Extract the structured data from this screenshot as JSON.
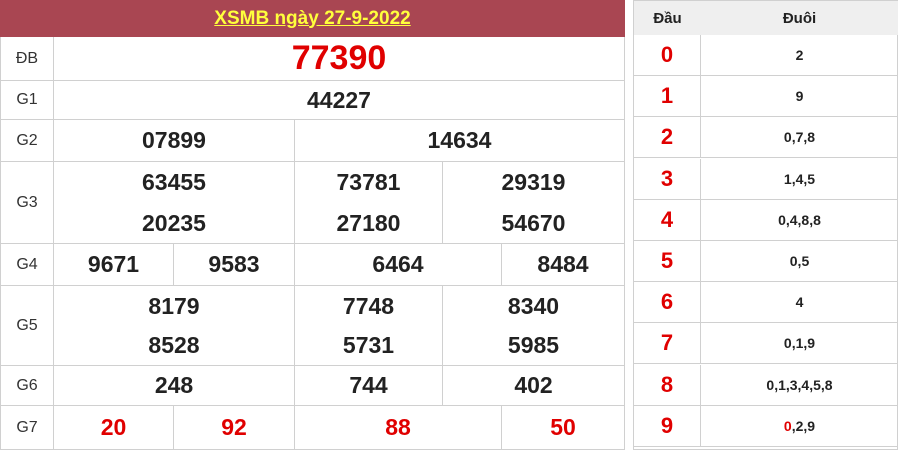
{
  "title": "XSMB ngày 27-9-2022",
  "prizes": {
    "db": {
      "label": "ĐB",
      "numbers": [
        "77390"
      ]
    },
    "g1": {
      "label": "G1",
      "numbers": [
        "44227"
      ]
    },
    "g2": {
      "label": "G2",
      "numbers": [
        "07899",
        "14634"
      ]
    },
    "g3": {
      "label": "G3",
      "numbers": [
        "63455",
        "73781",
        "29319",
        "20235",
        "27180",
        "54670"
      ]
    },
    "g4": {
      "label": "G4",
      "numbers": [
        "9671",
        "9583",
        "6464",
        "8484"
      ]
    },
    "g5": {
      "label": "G5",
      "numbers": [
        "8179",
        "7748",
        "8340",
        "8528",
        "5731",
        "5985"
      ]
    },
    "g6": {
      "label": "G6",
      "numbers": [
        "248",
        "744",
        "402"
      ]
    },
    "g7": {
      "label": "G7",
      "numbers": [
        "20",
        "92",
        "88",
        "50"
      ]
    }
  },
  "loto": {
    "head_label": "Đầu",
    "tail_label": "Đuôi",
    "rows": [
      {
        "head": "0",
        "tail_red": "",
        "tail": "2"
      },
      {
        "head": "1",
        "tail_red": "",
        "tail": "9"
      },
      {
        "head": "2",
        "tail_red": "",
        "tail": "0,7,8"
      },
      {
        "head": "3",
        "tail_red": "",
        "tail": "1,4,5"
      },
      {
        "head": "4",
        "tail_red": "",
        "tail": "0,4,8,8"
      },
      {
        "head": "5",
        "tail_red": "",
        "tail": "0,5"
      },
      {
        "head": "6",
        "tail_red": "",
        "tail": "4"
      },
      {
        "head": "7",
        "tail_red": "",
        "tail": "0,1,9"
      },
      {
        "head": "8",
        "tail_red": "",
        "tail": "0,1,3,4,5,8"
      },
      {
        "head": "9",
        "tail_red": "0",
        "tail": ",2,9"
      }
    ]
  },
  "colors": {
    "header_bg": "#a94652",
    "title": "#ffff3c",
    "highlight": "#e00000"
  }
}
